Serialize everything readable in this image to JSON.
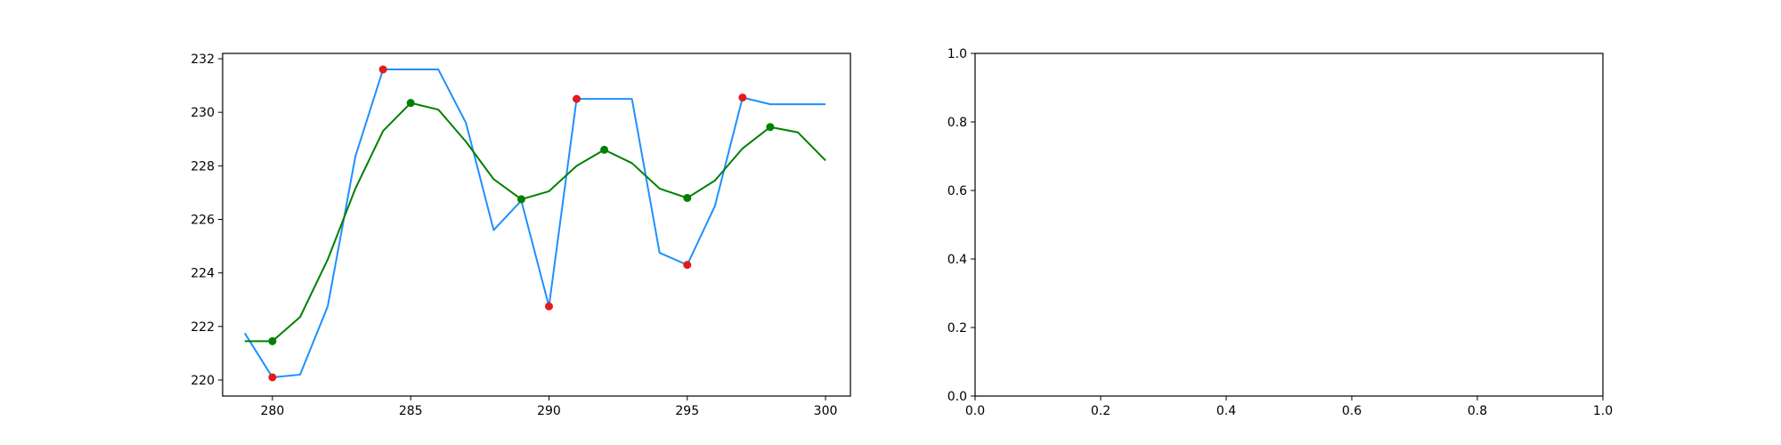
{
  "chart_data": [
    {
      "type": "line",
      "xlim": [
        278.2,
        300.9
      ],
      "ylim": [
        219.4,
        232.2
      ],
      "x_ticks": [
        280,
        285,
        290,
        295,
        300
      ],
      "y_ticks": [
        220,
        222,
        224,
        226,
        228,
        230,
        232
      ],
      "grid": false,
      "series": [
        {
          "color": "#1e90ff",
          "x": [
            279,
            280,
            281,
            282,
            283,
            284,
            285,
            286,
            287,
            288,
            289,
            290,
            291,
            292,
            293,
            294,
            295,
            296,
            297,
            298,
            299,
            300
          ],
          "y": [
            221.75,
            220.1,
            220.2,
            222.75,
            228.35,
            231.6,
            231.6,
            231.6,
            229.6,
            225.6,
            226.7,
            222.75,
            230.5,
            230.5,
            230.5,
            224.75,
            224.3,
            226.5,
            230.55,
            230.3,
            230.3,
            230.3
          ]
        },
        {
          "color": "#008000",
          "x": [
            279,
            280,
            281,
            282,
            283,
            284,
            285,
            286,
            287,
            288,
            289,
            290,
            291,
            292,
            293,
            294,
            295,
            296,
            297,
            298,
            299,
            300
          ],
          "y": [
            221.45,
            221.45,
            222.35,
            224.5,
            227.15,
            229.3,
            230.35,
            230.1,
            228.9,
            227.5,
            226.75,
            227.05,
            228.0,
            228.6,
            228.1,
            227.15,
            226.8,
            227.45,
            228.65,
            229.45,
            229.25,
            228.2
          ]
        }
      ],
      "markers": [
        {
          "color": "#e41a1c",
          "points": [
            {
              "x": 280,
              "y": 220.1
            },
            {
              "x": 284,
              "y": 231.6
            },
            {
              "x": 290,
              "y": 222.75
            },
            {
              "x": 291,
              "y": 230.5
            },
            {
              "x": 295,
              "y": 224.3
            },
            {
              "x": 297,
              "y": 230.55
            }
          ]
        },
        {
          "color": "#008000",
          "points": [
            {
              "x": 280,
              "y": 221.45
            },
            {
              "x": 285,
              "y": 230.35
            },
            {
              "x": 289,
              "y": 226.75
            },
            {
              "x": 292,
              "y": 228.6
            },
            {
              "x": 295,
              "y": 226.8
            },
            {
              "x": 298,
              "y": 229.45
            }
          ]
        }
      ]
    },
    {
      "type": "line",
      "xlim": [
        0,
        1
      ],
      "ylim": [
        0,
        1
      ],
      "x_ticks": [
        "0.0",
        "0.2",
        "0.4",
        "0.6",
        "0.8",
        "1.0"
      ],
      "y_ticks": [
        "0.0",
        "0.2",
        "0.4",
        "0.6",
        "0.8",
        "1.0"
      ],
      "grid": false,
      "series": []
    }
  ]
}
